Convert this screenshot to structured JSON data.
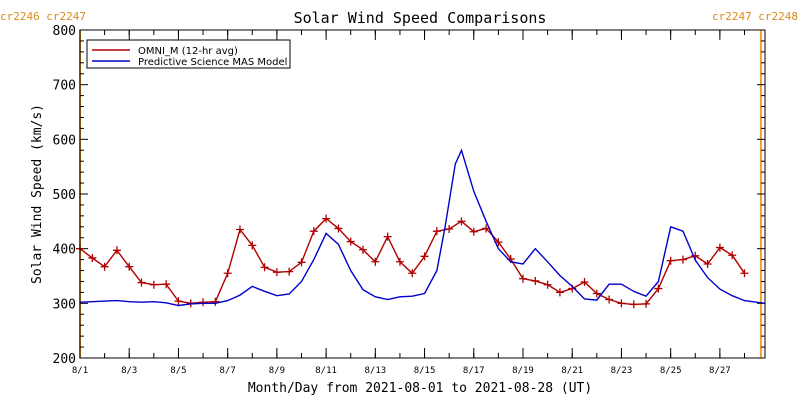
{
  "chart_data": {
    "type": "line",
    "title": "Solar Wind Speed Comparisons",
    "xlabel": "Month/Day from 2021-08-01 to 2021-08-28 (UT)",
    "ylabel": "Solar Wind Speed (km/s)",
    "xlim": [
      "2021-08-01",
      "2021-08-28T20:00"
    ],
    "ylim": [
      200,
      800
    ],
    "x_tick_labels": [
      {
        "date": "2021-08-01",
        "label": "8/1"
      },
      {
        "date": "2021-08-03",
        "label": "8/3"
      },
      {
        "date": "2021-08-05",
        "label": "8/5"
      },
      {
        "date": "2021-08-07",
        "label": "8/7"
      },
      {
        "date": "2021-08-09",
        "label": "8/9"
      },
      {
        "date": "2021-08-11",
        "label": "8/11"
      },
      {
        "date": "2021-08-13",
        "label": "8/13"
      },
      {
        "date": "2021-08-15",
        "label": "8/15"
      },
      {
        "date": "2021-08-17",
        "label": "8/17"
      },
      {
        "date": "2021-08-19",
        "label": "8/19"
      },
      {
        "date": "2021-08-21",
        "label": "8/21"
      },
      {
        "date": "2021-08-23",
        "label": "8/23"
      },
      {
        "date": "2021-08-25",
        "label": "8/25"
      },
      {
        "date": "2021-08-27",
        "label": "8/27"
      }
    ],
    "y_ticks": [
      "200",
      "300",
      "400",
      "500",
      "600",
      "700",
      "800"
    ],
    "legend_position": "top-left",
    "series": [
      {
        "name": "OMNI_M (12-hr avg)",
        "color": "#b00000",
        "marker": "plus",
        "points": [
          [
            "2021-08-01T00:00",
            400
          ],
          [
            "2021-08-01T12:00",
            383
          ],
          [
            "2021-08-02T00:00",
            367
          ],
          [
            "2021-08-02T12:00",
            397
          ],
          [
            "2021-08-03T00:00",
            367
          ],
          [
            "2021-08-03T12:00",
            338
          ],
          [
            "2021-08-04T00:00",
            334
          ],
          [
            "2021-08-04T12:00",
            335
          ],
          [
            "2021-08-05T00:00",
            304
          ],
          [
            "2021-08-05T12:00",
            300
          ],
          [
            "2021-08-06T00:00",
            302
          ],
          [
            "2021-08-06T12:00",
            303
          ],
          [
            "2021-08-07T00:00",
            355
          ],
          [
            "2021-08-07T12:00",
            435
          ],
          [
            "2021-08-08T00:00",
            406
          ],
          [
            "2021-08-08T12:00",
            366
          ],
          [
            "2021-08-09T00:00",
            357
          ],
          [
            "2021-08-09T12:00",
            358
          ],
          [
            "2021-08-10T00:00",
            375
          ],
          [
            "2021-08-10T12:00",
            432
          ],
          [
            "2021-08-11T00:00",
            455
          ],
          [
            "2021-08-11T12:00",
            437
          ],
          [
            "2021-08-12T00:00",
            413
          ],
          [
            "2021-08-12T12:00",
            398
          ],
          [
            "2021-08-13T00:00",
            376
          ],
          [
            "2021-08-13T12:00",
            422
          ],
          [
            "2021-08-14T00:00",
            376
          ],
          [
            "2021-08-14T12:00",
            355
          ],
          [
            "2021-08-15T00:00",
            386
          ],
          [
            "2021-08-15T12:00",
            432
          ],
          [
            "2021-08-16T00:00",
            436
          ],
          [
            "2021-08-16T12:00",
            450
          ],
          [
            "2021-08-17T00:00",
            431
          ],
          [
            "2021-08-17T12:00",
            437
          ],
          [
            "2021-08-18T00:00",
            412
          ],
          [
            "2021-08-18T12:00",
            381
          ],
          [
            "2021-08-19T00:00",
            345
          ],
          [
            "2021-08-19T12:00",
            341
          ],
          [
            "2021-08-20T00:00",
            334
          ],
          [
            "2021-08-20T12:00",
            320
          ],
          [
            "2021-08-21T00:00",
            327
          ],
          [
            "2021-08-21T12:00",
            339
          ],
          [
            "2021-08-22T00:00",
            318
          ],
          [
            "2021-08-22T12:00",
            307
          ],
          [
            "2021-08-23T00:00",
            300
          ],
          [
            "2021-08-23T12:00",
            298
          ],
          [
            "2021-08-24T00:00",
            299
          ],
          [
            "2021-08-24T12:00",
            327
          ],
          [
            "2021-08-25T00:00",
            378
          ],
          [
            "2021-08-25T12:00",
            380
          ],
          [
            "2021-08-26T00:00",
            387
          ],
          [
            "2021-08-26T12:00",
            372
          ],
          [
            "2021-08-27T00:00",
            402
          ],
          [
            "2021-08-27T12:00",
            388
          ],
          [
            "2021-08-28T00:00",
            355
          ]
        ]
      },
      {
        "name": "Predictive Science MAS Model",
        "color": "#0000cc",
        "marker": "none",
        "points": [
          [
            "2021-08-01T00:00",
            302
          ],
          [
            "2021-08-01T12:00",
            303
          ],
          [
            "2021-08-02T00:00",
            304
          ],
          [
            "2021-08-02T12:00",
            305
          ],
          [
            "2021-08-03T00:00",
            303
          ],
          [
            "2021-08-03T12:00",
            302
          ],
          [
            "2021-08-04T00:00",
            303
          ],
          [
            "2021-08-04T12:00",
            301
          ],
          [
            "2021-08-05T00:00",
            296
          ],
          [
            "2021-08-05T12:00",
            299
          ],
          [
            "2021-08-06T00:00",
            300
          ],
          [
            "2021-08-06T12:00",
            300
          ],
          [
            "2021-08-07T00:00",
            305
          ],
          [
            "2021-08-07T12:00",
            315
          ],
          [
            "2021-08-08T00:00",
            331
          ],
          [
            "2021-08-08T12:00",
            322
          ],
          [
            "2021-08-09T00:00",
            314
          ],
          [
            "2021-08-09T12:00",
            317
          ],
          [
            "2021-08-10T00:00",
            340
          ],
          [
            "2021-08-10T12:00",
            380
          ],
          [
            "2021-08-11T00:00",
            428
          ],
          [
            "2021-08-11T12:00",
            408
          ],
          [
            "2021-08-12T00:00",
            360
          ],
          [
            "2021-08-12T12:00",
            325
          ],
          [
            "2021-08-13T00:00",
            312
          ],
          [
            "2021-08-13T12:00",
            307
          ],
          [
            "2021-08-14T00:00",
            312
          ],
          [
            "2021-08-14T12:00",
            313
          ],
          [
            "2021-08-15T00:00",
            318
          ],
          [
            "2021-08-15T12:00",
            360
          ],
          [
            "2021-08-15T20:00",
            440
          ],
          [
            "2021-08-16T06:00",
            555
          ],
          [
            "2021-08-16T12:00",
            580
          ],
          [
            "2021-08-17T00:00",
            505
          ],
          [
            "2021-08-17T12:00",
            450
          ],
          [
            "2021-08-18T00:00",
            400
          ],
          [
            "2021-08-18T12:00",
            376
          ],
          [
            "2021-08-19T00:00",
            372
          ],
          [
            "2021-08-19T12:00",
            400
          ],
          [
            "2021-08-20T00:00",
            376
          ],
          [
            "2021-08-20T12:00",
            351
          ],
          [
            "2021-08-21T00:00",
            331
          ],
          [
            "2021-08-21T12:00",
            308
          ],
          [
            "2021-08-22T00:00",
            306
          ],
          [
            "2021-08-22T12:00",
            335
          ],
          [
            "2021-08-23T00:00",
            335
          ],
          [
            "2021-08-23T12:00",
            322
          ],
          [
            "2021-08-24T00:00",
            313
          ],
          [
            "2021-08-24T12:00",
            340
          ],
          [
            "2021-08-25T00:00",
            440
          ],
          [
            "2021-08-25T12:00",
            432
          ],
          [
            "2021-08-26T00:00",
            379
          ],
          [
            "2021-08-26T12:00",
            347
          ],
          [
            "2021-08-27T00:00",
            326
          ],
          [
            "2021-08-27T12:00",
            314
          ],
          [
            "2021-08-28T00:00",
            305
          ],
          [
            "2021-08-28T20:00",
            300
          ]
        ]
      }
    ],
    "carrington_markers": [
      {
        "date": "2021-08-01",
        "labels": [
          "cr2246",
          "cr2247"
        ],
        "color": "#f0a030"
      },
      {
        "date": "2021-08-28T16:00",
        "labels": [
          "cr2247",
          "cr2248"
        ],
        "color": "#f0a030"
      }
    ]
  }
}
